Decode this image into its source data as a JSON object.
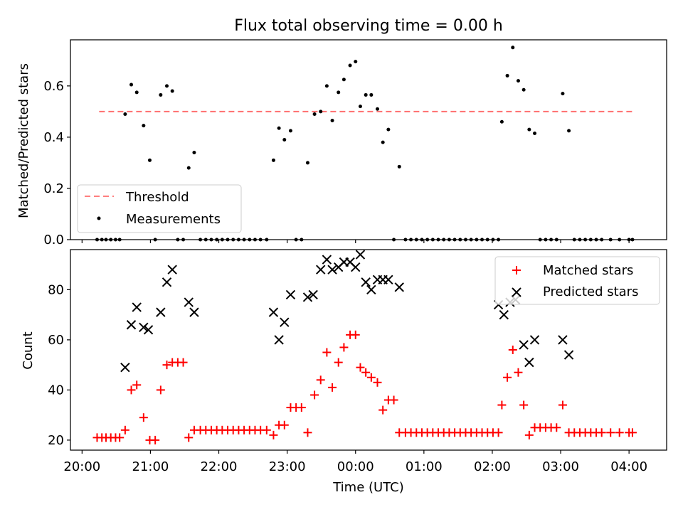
{
  "chart_data": [
    {
      "type": "scatter",
      "title": "Flux total observing time = 0.00 h",
      "xlabel": "",
      "ylabel": "Matched/Predicted stars",
      "xlim": [
        19.83,
        28.55
      ],
      "ylim": [
        0,
        0.78
      ],
      "yticks": [
        0.0,
        0.2,
        0.4,
        0.6
      ],
      "ytick_labels": [
        "0.0",
        "0.2",
        "0.4",
        "0.6"
      ],
      "legend_position": "lower-left",
      "threshold": {
        "name": "Threshold",
        "y": 0.5,
        "x_range": [
          20.25,
          28.05
        ],
        "color": "#ff6f6f"
      },
      "series": [
        {
          "name": "Measurements",
          "color": "#000000",
          "points": [
            [
              20.22,
              0.0
            ],
            [
              20.29,
              0.0
            ],
            [
              20.35,
              0.0
            ],
            [
              20.42,
              0.0
            ],
            [
              20.49,
              0.0
            ],
            [
              20.55,
              0.0
            ],
            [
              20.63,
              0.49
            ],
            [
              20.72,
              0.605
            ],
            [
              20.8,
              0.575
            ],
            [
              20.9,
              0.445
            ],
            [
              20.99,
              0.31
            ],
            [
              21.07,
              0.0
            ],
            [
              21.15,
              0.565
            ],
            [
              21.24,
              0.6
            ],
            [
              21.32,
              0.58
            ],
            [
              21.4,
              0.0
            ],
            [
              21.48,
              0.0
            ],
            [
              21.56,
              0.28
            ],
            [
              21.64,
              0.34
            ],
            [
              21.73,
              0.0
            ],
            [
              21.81,
              0.0
            ],
            [
              21.89,
              0.0
            ],
            [
              21.97,
              0.0
            ],
            [
              22.05,
              0.0
            ],
            [
              22.13,
              0.0
            ],
            [
              22.21,
              0.0
            ],
            [
              22.29,
              0.0
            ],
            [
              22.37,
              0.0
            ],
            [
              22.45,
              0.0
            ],
            [
              22.53,
              0.0
            ],
            [
              22.61,
              0.0
            ],
            [
              22.7,
              0.0
            ],
            [
              22.8,
              0.31
            ],
            [
              22.88,
              0.435
            ],
            [
              22.96,
              0.39
            ],
            [
              23.05,
              0.425
            ],
            [
              23.13,
              0.0
            ],
            [
              23.21,
              0.0
            ],
            [
              23.3,
              0.3
            ],
            [
              23.4,
              0.49
            ],
            [
              23.49,
              0.5
            ],
            [
              23.58,
              0.6
            ],
            [
              23.66,
              0.465
            ],
            [
              23.75,
              0.575
            ],
            [
              23.83,
              0.625
            ],
            [
              23.92,
              0.68
            ],
            [
              24.0,
              0.695
            ],
            [
              24.07,
              0.52
            ],
            [
              24.15,
              0.565
            ],
            [
              24.23,
              0.565
            ],
            [
              24.32,
              0.51
            ],
            [
              24.4,
              0.38
            ],
            [
              24.48,
              0.43
            ],
            [
              24.56,
              0.0
            ],
            [
              24.64,
              0.285
            ],
            [
              24.73,
              0.0
            ],
            [
              24.81,
              0.0
            ],
            [
              24.89,
              0.0
            ],
            [
              24.97,
              0.0
            ],
            [
              25.05,
              0.0
            ],
            [
              25.13,
              0.0
            ],
            [
              25.21,
              0.0
            ],
            [
              25.29,
              0.0
            ],
            [
              25.37,
              0.0
            ],
            [
              25.45,
              0.0
            ],
            [
              25.53,
              0.0
            ],
            [
              25.61,
              0.0
            ],
            [
              25.69,
              0.0
            ],
            [
              25.77,
              0.0
            ],
            [
              25.85,
              0.0
            ],
            [
              25.93,
              0.0
            ],
            [
              26.01,
              0.0
            ],
            [
              26.09,
              0.0
            ],
            [
              26.14,
              0.46
            ],
            [
              26.22,
              0.64
            ],
            [
              26.3,
              0.75
            ],
            [
              26.38,
              0.62
            ],
            [
              26.46,
              0.585
            ],
            [
              26.54,
              0.43
            ],
            [
              26.62,
              0.415
            ],
            [
              26.7,
              0.0
            ],
            [
              26.78,
              0.0
            ],
            [
              26.86,
              0.0
            ],
            [
              26.94,
              0.0
            ],
            [
              27.03,
              0.57
            ],
            [
              27.12,
              0.425
            ],
            [
              27.2,
              0.0
            ],
            [
              27.28,
              0.0
            ],
            [
              27.36,
              0.0
            ],
            [
              27.44,
              0.0
            ],
            [
              27.52,
              0.0
            ],
            [
              27.6,
              0.0
            ],
            [
              27.73,
              0.0
            ],
            [
              27.86,
              0.0
            ],
            [
              28.0,
              0.0
            ],
            [
              28.05,
              0.0
            ]
          ]
        }
      ]
    },
    {
      "type": "scatter",
      "title": "",
      "xlabel": "Time (UTC)",
      "ylabel": "Count",
      "xlim": [
        19.83,
        28.55
      ],
      "ylim": [
        16,
        96
      ],
      "xticks": [
        20,
        21,
        22,
        23,
        24,
        25,
        26,
        27,
        28
      ],
      "xtick_labels": [
        "20:00",
        "21:00",
        "22:00",
        "23:00",
        "00:00",
        "01:00",
        "02:00",
        "03:00",
        "04:00"
      ],
      "yticks": [
        20,
        40,
        60,
        80
      ],
      "ytick_labels": [
        "20",
        "40",
        "60",
        "80"
      ],
      "legend_position": "top-right",
      "series": [
        {
          "name": "Matched stars",
          "marker": "plus",
          "color": "#ff0000",
          "points": [
            [
              20.22,
              21
            ],
            [
              20.29,
              21
            ],
            [
              20.35,
              21
            ],
            [
              20.42,
              21
            ],
            [
              20.49,
              21
            ],
            [
              20.55,
              21
            ],
            [
              20.63,
              24
            ],
            [
              20.72,
              40
            ],
            [
              20.8,
              42
            ],
            [
              20.9,
              29
            ],
            [
              20.99,
              20
            ],
            [
              21.07,
              20
            ],
            [
              21.15,
              40
            ],
            [
              21.24,
              50
            ],
            [
              21.32,
              51
            ],
            [
              21.4,
              51
            ],
            [
              21.48,
              51
            ],
            [
              21.56,
              21
            ],
            [
              21.64,
              24
            ],
            [
              21.73,
              24
            ],
            [
              21.81,
              24
            ],
            [
              21.89,
              24
            ],
            [
              21.97,
              24
            ],
            [
              22.05,
              24
            ],
            [
              22.13,
              24
            ],
            [
              22.21,
              24
            ],
            [
              22.29,
              24
            ],
            [
              22.37,
              24
            ],
            [
              22.45,
              24
            ],
            [
              22.53,
              24
            ],
            [
              22.61,
              24
            ],
            [
              22.7,
              24
            ],
            [
              22.8,
              22
            ],
            [
              22.88,
              26
            ],
            [
              22.96,
              26
            ],
            [
              23.05,
              33
            ],
            [
              23.13,
              33
            ],
            [
              23.21,
              33
            ],
            [
              23.3,
              23
            ],
            [
              23.4,
              38
            ],
            [
              23.49,
              44
            ],
            [
              23.58,
              55
            ],
            [
              23.66,
              41
            ],
            [
              23.75,
              51
            ],
            [
              23.83,
              57
            ],
            [
              23.92,
              62
            ],
            [
              24.0,
              62
            ],
            [
              24.07,
              49
            ],
            [
              24.15,
              47
            ],
            [
              24.23,
              45
            ],
            [
              24.32,
              43
            ],
            [
              24.4,
              32
            ],
            [
              24.48,
              36
            ],
            [
              24.56,
              36
            ],
            [
              24.64,
              23
            ],
            [
              24.73,
              23
            ],
            [
              24.81,
              23
            ],
            [
              24.89,
              23
            ],
            [
              24.97,
              23
            ],
            [
              25.05,
              23
            ],
            [
              25.13,
              23
            ],
            [
              25.21,
              23
            ],
            [
              25.29,
              23
            ],
            [
              25.37,
              23
            ],
            [
              25.45,
              23
            ],
            [
              25.53,
              23
            ],
            [
              25.61,
              23
            ],
            [
              25.69,
              23
            ],
            [
              25.77,
              23
            ],
            [
              25.85,
              23
            ],
            [
              25.93,
              23
            ],
            [
              26.01,
              23
            ],
            [
              26.09,
              23
            ],
            [
              26.14,
              34
            ],
            [
              26.22,
              45
            ],
            [
              26.3,
              56
            ],
            [
              26.38,
              47
            ],
            [
              26.46,
              34
            ],
            [
              26.54,
              22
            ],
            [
              26.62,
              25
            ],
            [
              26.7,
              25
            ],
            [
              26.78,
              25
            ],
            [
              26.86,
              25
            ],
            [
              26.94,
              25
            ],
            [
              27.03,
              34
            ],
            [
              27.12,
              23
            ],
            [
              27.2,
              23
            ],
            [
              27.28,
              23
            ],
            [
              27.36,
              23
            ],
            [
              27.44,
              23
            ],
            [
              27.52,
              23
            ],
            [
              27.6,
              23
            ],
            [
              27.73,
              23
            ],
            [
              27.86,
              23
            ],
            [
              28.0,
              23
            ],
            [
              28.05,
              23
            ]
          ]
        },
        {
          "name": "Predicted stars",
          "marker": "x",
          "color": "#000000",
          "points": [
            [
              20.63,
              49
            ],
            [
              20.72,
              66
            ],
            [
              20.8,
              73
            ],
            [
              20.9,
              65
            ],
            [
              20.97,
              64
            ],
            [
              21.15,
              71
            ],
            [
              21.24,
              83
            ],
            [
              21.32,
              88
            ],
            [
              21.56,
              75
            ],
            [
              21.64,
              71
            ],
            [
              22.8,
              71
            ],
            [
              22.88,
              60
            ],
            [
              22.96,
              67
            ],
            [
              23.05,
              78
            ],
            [
              23.3,
              77
            ],
            [
              23.38,
              78
            ],
            [
              23.49,
              88
            ],
            [
              23.58,
              92
            ],
            [
              23.66,
              88
            ],
            [
              23.75,
              89
            ],
            [
              23.83,
              91
            ],
            [
              23.92,
              91
            ],
            [
              24.0,
              89
            ],
            [
              24.07,
              94
            ],
            [
              24.15,
              83
            ],
            [
              24.23,
              80
            ],
            [
              24.32,
              84
            ],
            [
              24.4,
              84
            ],
            [
              24.48,
              84
            ],
            [
              24.64,
              81
            ],
            [
              26.09,
              74
            ],
            [
              26.17,
              70
            ],
            [
              26.26,
              75
            ],
            [
              26.34,
              76
            ],
            [
              26.46,
              58
            ],
            [
              26.54,
              51
            ],
            [
              26.62,
              60
            ],
            [
              27.03,
              60
            ],
            [
              27.12,
              54
            ]
          ]
        }
      ]
    }
  ]
}
